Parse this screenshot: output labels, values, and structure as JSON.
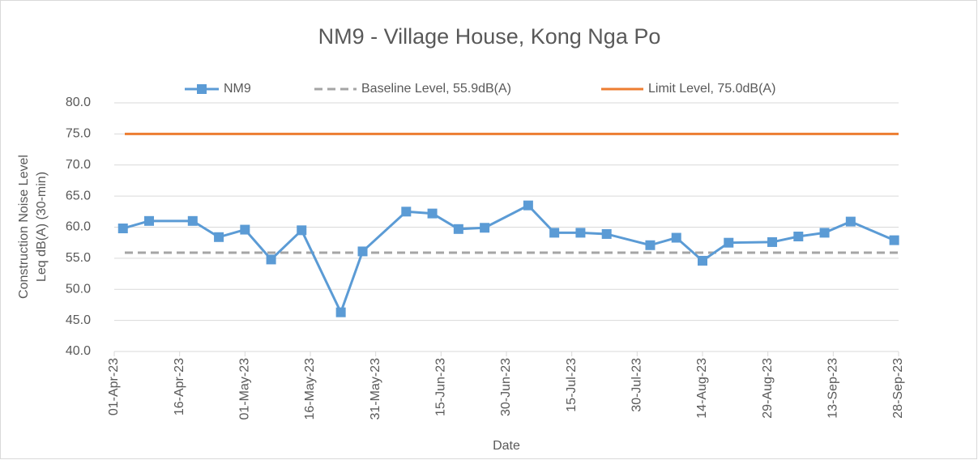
{
  "chart_data": {
    "type": "line",
    "title": "NM9 - Village House, Kong Nga Po",
    "xlabel": "Date",
    "ylabel": [
      "Construction Noise Level",
      "Leq dB(A) (30-min)"
    ],
    "x": [
      "2023-04-03",
      "2023-04-09",
      "2023-04-19",
      "2023-04-25",
      "2023-05-01",
      "2023-05-07",
      "2023-05-14",
      "2023-05-23",
      "2023-05-28",
      "2023-06-07",
      "2023-06-13",
      "2023-06-19",
      "2023-06-25",
      "2023-07-05",
      "2023-07-11",
      "2023-07-17",
      "2023-07-23",
      "2023-08-02",
      "2023-08-08",
      "2023-08-14",
      "2023-08-20",
      "2023-08-30",
      "2023-09-05",
      "2023-09-11",
      "2023-09-17",
      "2023-09-27"
    ],
    "series": [
      {
        "name": "NM9",
        "color": "#5b9bd5",
        "marker": "square",
        "values": [
          59.8,
          61.0,
          61.0,
          58.4,
          59.6,
          54.8,
          59.5,
          46.3,
          56.1,
          62.5,
          62.2,
          59.7,
          59.9,
          63.5,
          59.1,
          59.1,
          58.9,
          57.1,
          58.3,
          54.6,
          57.5,
          57.6,
          58.5,
          59.1,
          60.9,
          57.9
        ]
      }
    ],
    "reference_lines": [
      {
        "name": "Baseline Level, 55.9dB(A)",
        "value": 55.9,
        "color": "#a5a5a5",
        "dashed": true
      },
      {
        "name": "Limit Level, 75.0dB(A)",
        "value": 75.0,
        "color": "#ed7d31",
        "dashed": false
      }
    ],
    "xlim": [
      "2023-04-01",
      "2023-09-28"
    ],
    "xticks": [
      {
        "value": "2023-04-01",
        "label": "01-Apr-23"
      },
      {
        "value": "2023-04-16",
        "label": "16-Apr-23"
      },
      {
        "value": "2023-05-01",
        "label": "01-May-23"
      },
      {
        "value": "2023-05-16",
        "label": "16-May-23"
      },
      {
        "value": "2023-05-31",
        "label": "31-May-23"
      },
      {
        "value": "2023-06-15",
        "label": "15-Jun-23"
      },
      {
        "value": "2023-06-30",
        "label": "30-Jun-23"
      },
      {
        "value": "2023-07-15",
        "label": "15-Jul-23"
      },
      {
        "value": "2023-07-30",
        "label": "30-Jul-23"
      },
      {
        "value": "2023-08-14",
        "label": "14-Aug-23"
      },
      {
        "value": "2023-08-29",
        "label": "29-Aug-23"
      },
      {
        "value": "2023-09-13",
        "label": "13-Sep-23"
      },
      {
        "value": "2023-09-28",
        "label": "28-Sep-23"
      }
    ],
    "ylim": [
      40,
      80
    ],
    "yticks": [
      {
        "value": 40,
        "label": "40.0"
      },
      {
        "value": 45,
        "label": "45.0"
      },
      {
        "value": 50,
        "label": "50.0"
      },
      {
        "value": 55,
        "label": "55.0"
      },
      {
        "value": 60,
        "label": "60.0"
      },
      {
        "value": 65,
        "label": "65.0"
      },
      {
        "value": 70,
        "label": "70.0"
      },
      {
        "value": 75,
        "label": "75.0"
      },
      {
        "value": 80,
        "label": "80.0"
      }
    ],
    "grid": true,
    "legend": "top"
  }
}
